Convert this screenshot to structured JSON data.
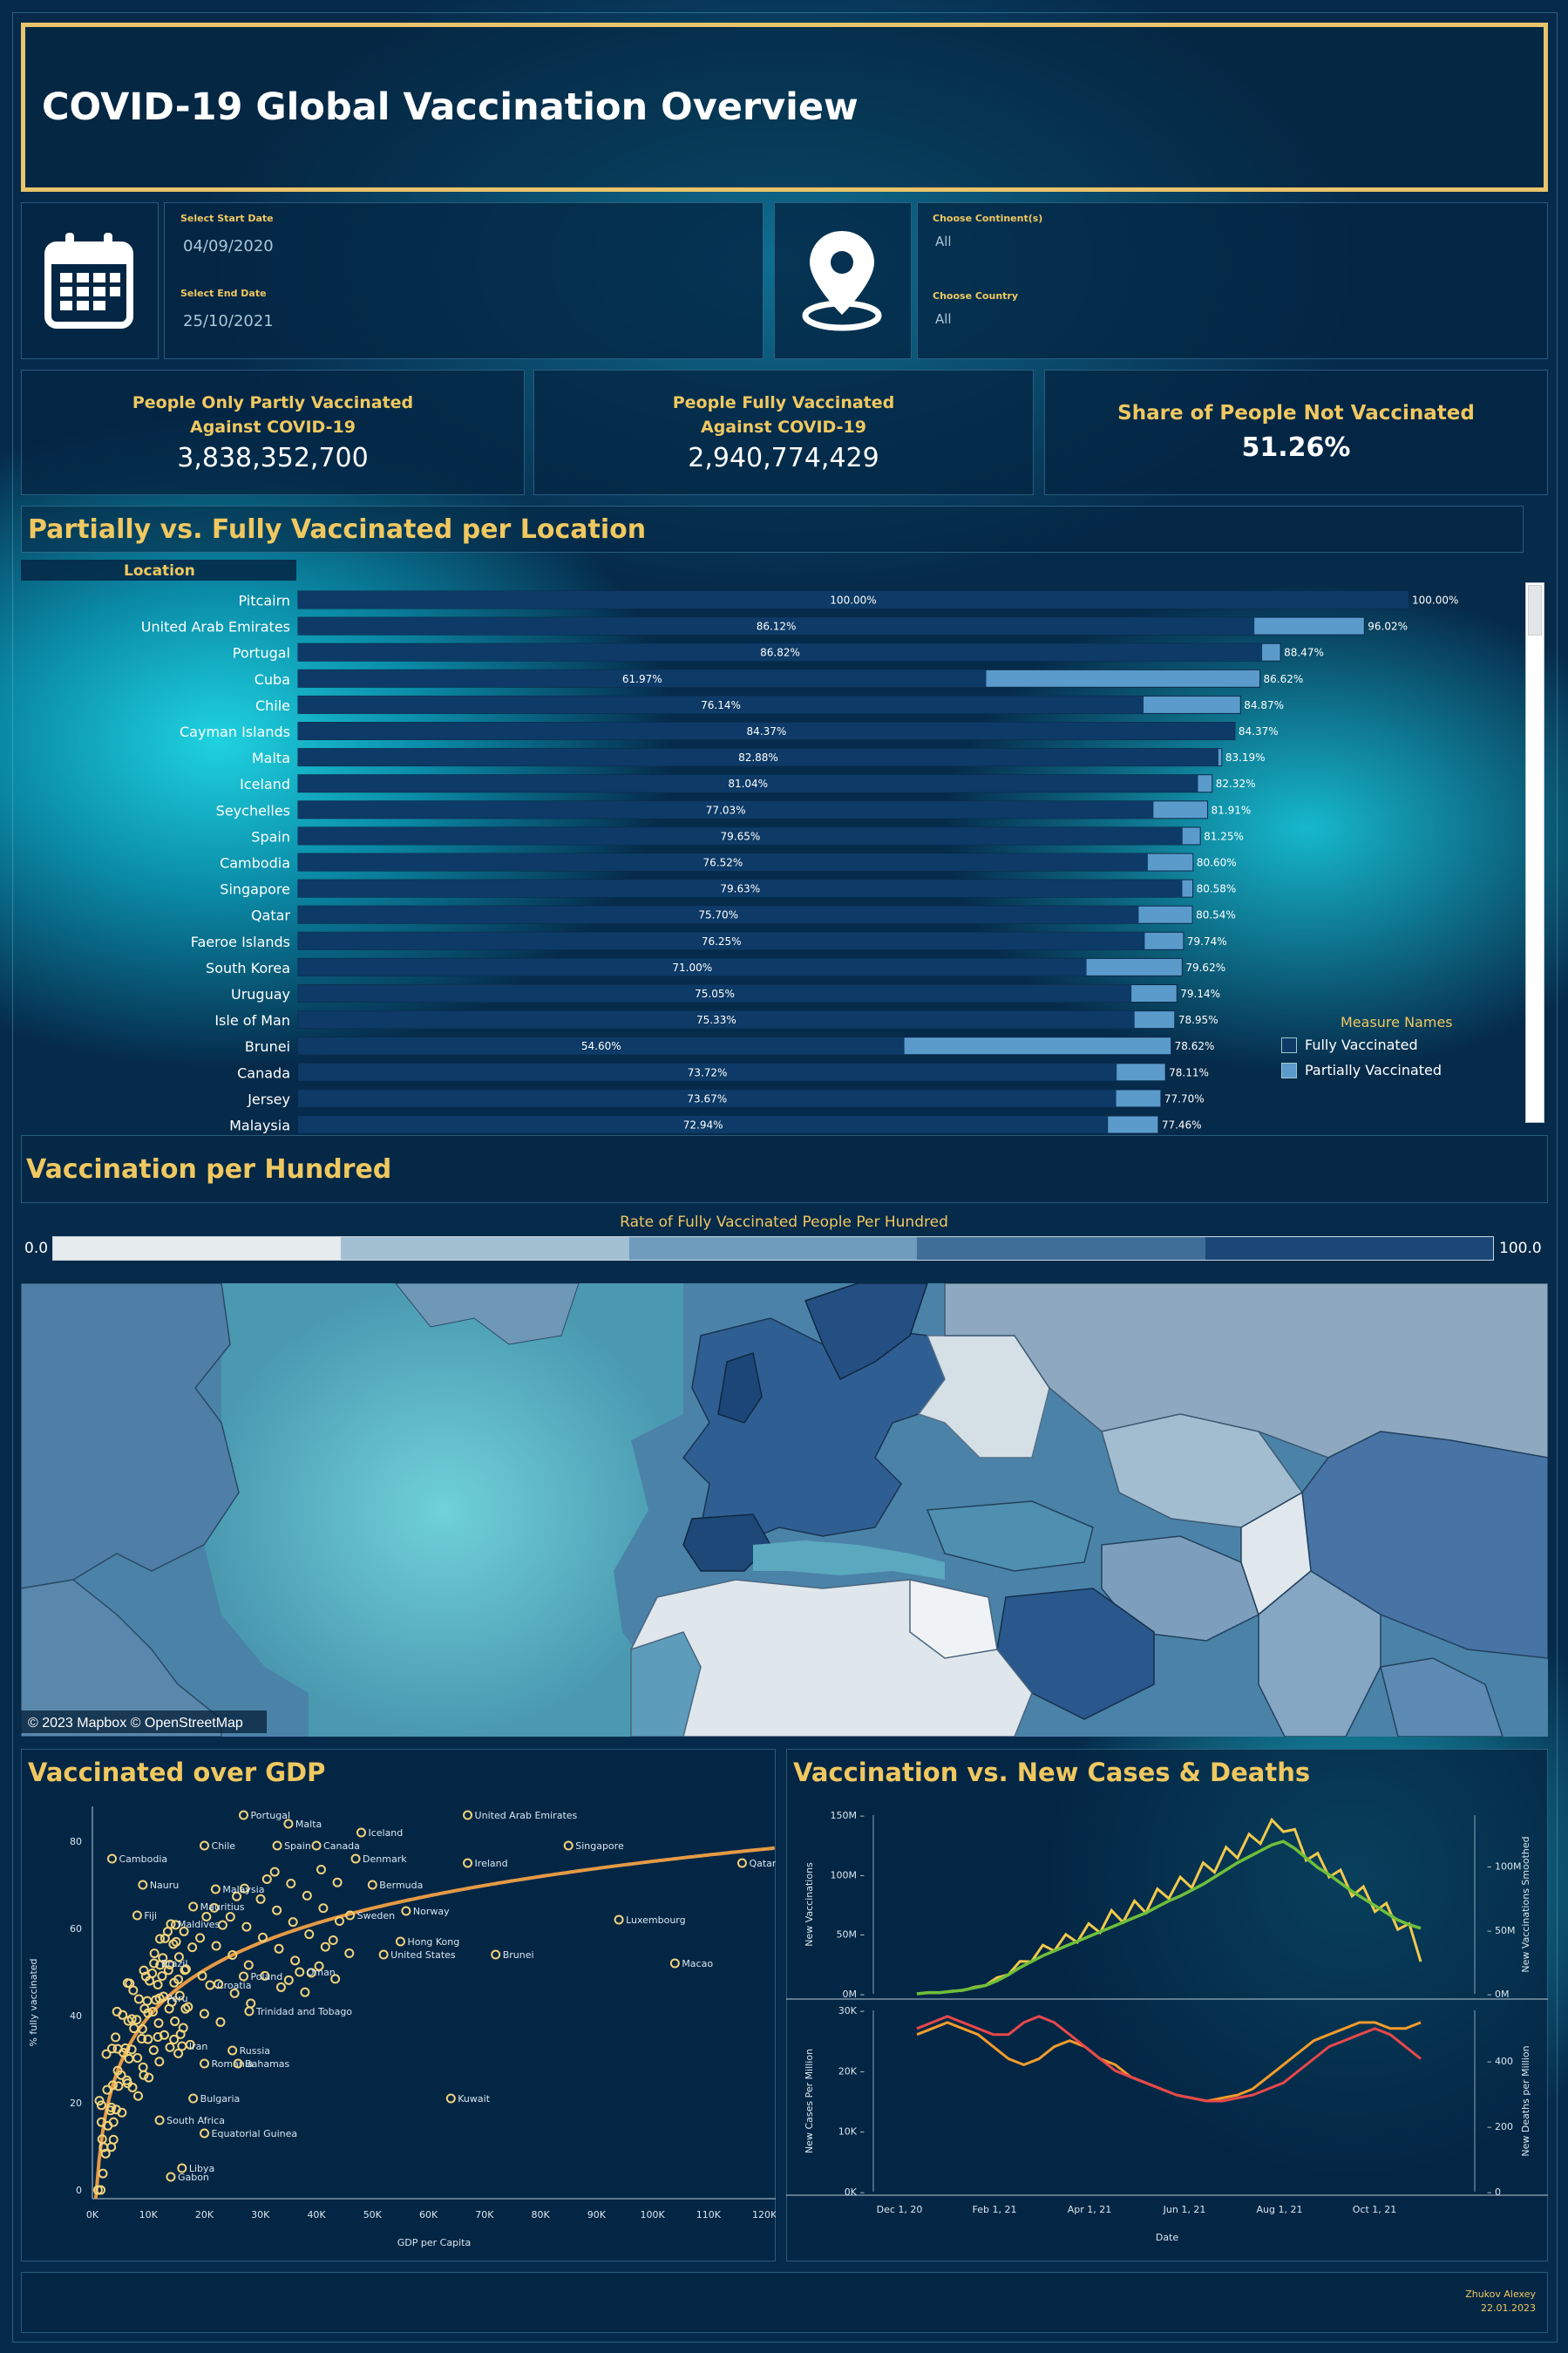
{
  "title": "COVID-19 Global Vaccination Overview",
  "filters": {
    "start_label": "Select Start Date",
    "start_value": "04/09/2020",
    "end_label": "Select End Date",
    "end_value": "25/10/2021",
    "continent_label": "Choose Continent(s)",
    "continent_value": "All",
    "country_label": "Choose Country",
    "country_value": "All"
  },
  "kpis": {
    "partly_label_1": "People Only Partly Vaccinated",
    "partly_label_2": "Against COVID-19",
    "partly_value": "3,838,352,700",
    "fully_label_1": "People Fully Vaccinated",
    "fully_label_2": "Against COVID-19",
    "fully_value": "2,940,774,429",
    "not_label": "Share of People Not Vaccinated",
    "not_value": "51.26%"
  },
  "bar_section": {
    "title": "Partially vs. Fully Vaccinated per Location",
    "location_header": "Location",
    "legend_title": "Measure Names",
    "legend_fully": "Fully Vaccinated",
    "legend_partial": "Partially Vaccinated",
    "colors": {
      "fully": "#0d3a66",
      "partial": "#5b9bcc"
    }
  },
  "map_section": {
    "title": "Vaccination per Hundred",
    "legend_title": "Rate of  Fully Vaccinated People Per Hundred",
    "legend_min": "0.0",
    "legend_max": "100.0",
    "attribution": "© 2023 Mapbox © OpenStreetMap",
    "legend_colors": [
      "#e6ebee",
      "#a3bfd2",
      "#6f9bbd",
      "#3f6f98",
      "#1b4778"
    ]
  },
  "gdp_section": {
    "title": "Vaccinated over GDP"
  },
  "trend_section": {
    "title": "Vaccination vs. New Cases & Deaths"
  },
  "footer": {
    "author": "Zhukov Alexey",
    "date": "22.01.2023"
  },
  "chart_data": [
    {
      "type": "bar",
      "categories": [
        "Pitcairn",
        "United Arab Emirates",
        "Portugal",
        "Cuba",
        "Chile",
        "Cayman Islands",
        "Malta",
        "Iceland",
        "Seychelles",
        "Spain",
        "Cambodia",
        "Singapore",
        "Qatar",
        "Faeroe Islands",
        "South Korea",
        "Uruguay",
        "Isle of Man",
        "Brunei",
        "Canada",
        "Jersey",
        "Malaysia"
      ],
      "series": [
        {
          "name": "Fully Vaccinated",
          "values": [
            100.0,
            86.12,
            86.82,
            61.97,
            76.14,
            84.37,
            82.88,
            81.04,
            77.03,
            79.65,
            76.52,
            79.63,
            75.7,
            76.25,
            71.0,
            75.05,
            75.33,
            54.6,
            73.72,
            73.67,
            72.94
          ]
        },
        {
          "name": "Partially Vaccinated",
          "values": [
            100.0,
            96.02,
            88.47,
            86.62,
            84.87,
            84.37,
            83.19,
            82.32,
            81.91,
            81.25,
            80.6,
            80.58,
            80.54,
            79.74,
            79.62,
            79.14,
            78.95,
            78.62,
            78.11,
            77.7,
            77.46
          ]
        }
      ],
      "fully_labels": [
        "100.00%",
        "86.12%",
        "86.82%",
        "61.97%",
        "76.14%",
        "84.37%",
        "82.88%",
        "81.04%",
        "77.03%",
        "79.65%",
        "76.52%",
        "79.63%",
        "75.70%",
        "76.25%",
        "71.00%",
        "75.05%",
        "75.33%",
        "54.60%",
        "73.72%",
        "73.67%",
        "72.94%"
      ],
      "partial_labels": [
        "100.00%",
        "96.02%",
        "88.47%",
        "86.62%",
        "84.87%",
        "84.37%",
        "83.19%",
        "82.32%",
        "81.91%",
        "81.25%",
        "80.60%",
        "80.58%",
        "80.54%",
        "79.74%",
        "79.62%",
        "79.14%",
        "78.95%",
        "78.62%",
        "78.11%",
        "77.70%",
        "77.46%"
      ],
      "xlim": [
        0,
        100
      ]
    },
    {
      "type": "scatter",
      "xlabel": "GDP per Capita",
      "ylabel": "% fully vaccinated",
      "x_ticks": [
        "0K",
        "10K",
        "20K",
        "30K",
        "40K",
        "50K",
        "60K",
        "70K",
        "80K",
        "90K",
        "100K",
        "110K",
        "120K"
      ],
      "y_ticks": [
        "0",
        "20",
        "40",
        "60",
        "80"
      ],
      "xlim": [
        0,
        122000
      ],
      "ylim": [
        -2,
        88
      ],
      "labeled_points": [
        {
          "label": "Portugal",
          "x": 27000,
          "y": 86
        },
        {
          "label": "Malta",
          "x": 35000,
          "y": 84
        },
        {
          "label": "Iceland",
          "x": 48000,
          "y": 82
        },
        {
          "label": "United Arab Emirates",
          "x": 67000,
          "y": 86
        },
        {
          "label": "Chile",
          "x": 20000,
          "y": 79
        },
        {
          "label": "Cambodia",
          "x": 3500,
          "y": 76
        },
        {
          "label": "Spain",
          "x": 33000,
          "y": 79
        },
        {
          "label": "Canada",
          "x": 40000,
          "y": 79
        },
        {
          "label": "Denmark",
          "x": 47000,
          "y": 76
        },
        {
          "label": "Singapore",
          "x": 85000,
          "y": 79
        },
        {
          "label": "Ireland",
          "x": 67000,
          "y": 75
        },
        {
          "label": "Qatar",
          "x": 116000,
          "y": 75
        },
        {
          "label": "Nauru",
          "x": 9000,
          "y": 70
        },
        {
          "label": "Malaysia",
          "x": 22000,
          "y": 69
        },
        {
          "label": "Bermuda",
          "x": 50000,
          "y": 70
        },
        {
          "label": "Mauritius",
          "x": 18000,
          "y": 65
        },
        {
          "label": "Maldives",
          "x": 14000,
          "y": 61
        },
        {
          "label": "Fiji",
          "x": 8000,
          "y": 63
        },
        {
          "label": "Sweden",
          "x": 46000,
          "y": 63
        },
        {
          "label": "Norway",
          "x": 56000,
          "y": 64
        },
        {
          "label": "Luxembourg",
          "x": 94000,
          "y": 62
        },
        {
          "label": "Hong Kong",
          "x": 55000,
          "y": 57
        },
        {
          "label": "United States",
          "x": 52000,
          "y": 54
        },
        {
          "label": "Brazil",
          "x": 11000,
          "y": 52
        },
        {
          "label": "Croatia",
          "x": 21000,
          "y": 47
        },
        {
          "label": "Poland",
          "x": 27000,
          "y": 49
        },
        {
          "label": "Oman",
          "x": 37000,
          "y": 50
        },
        {
          "label": "Brunei",
          "x": 72000,
          "y": 54
        },
        {
          "label": "Macao",
          "x": 104000,
          "y": 52
        },
        {
          "label": "Peru",
          "x": 12000,
          "y": 44
        },
        {
          "label": "Trinidad and Tobago",
          "x": 28000,
          "y": 41
        },
        {
          "label": "Iran",
          "x": 16000,
          "y": 33
        },
        {
          "label": "Russia",
          "x": 25000,
          "y": 32
        },
        {
          "label": "Romania",
          "x": 20000,
          "y": 29
        },
        {
          "label": "Bahamas",
          "x": 26000,
          "y": 29
        },
        {
          "label": "Bulgaria",
          "x": 18000,
          "y": 21
        },
        {
          "label": "Kuwait",
          "x": 64000,
          "y": 21
        },
        {
          "label": "South Africa",
          "x": 12000,
          "y": 16
        },
        {
          "label": "Equatorial Guinea",
          "x": 20000,
          "y": 13
        },
        {
          "label": "Libya",
          "x": 16000,
          "y": 5
        },
        {
          "label": "Gabon",
          "x": 14000,
          "y": 3
        }
      ]
    },
    {
      "type": "line",
      "xlabel": "Date",
      "x_ticks": [
        "Dec 1, 20",
        "Feb 1, 21",
        "Apr 1, 21",
        "Jun 1, 21",
        "Aug 1, 21",
        "Oct 1, 21"
      ],
      "top": {
        "ylabel_left": "New Vaccinations",
        "ylabel_right": "New Vaccinations Smoothed",
        "y_ticks_left": [
          "0M",
          "50M",
          "100M",
          "150M"
        ],
        "y_ticks_right": [
          "0M",
          "50M",
          "100M"
        ],
        "series": [
          {
            "name": "New Vaccinations",
            "color": "#f2c94c",
            "values": [
              0,
              1,
              1,
              2,
              3,
              5,
              8,
              12,
              18,
              24,
              30,
              36,
              40,
              44,
              48,
              52,
              57,
              62,
              66,
              70,
              74,
              80,
              86,
              90,
              95,
              102,
              108,
              115,
              120,
              126,
              132,
              138,
              142,
              130,
              118,
              110,
              104,
              96,
              88,
              82,
              75,
              68,
              60,
              52,
              30
            ]
          },
          {
            "name": "New Vaccinations Smoothed",
            "color": "#6fbf3a",
            "values": [
              0,
              1,
              1,
              2,
              3,
              5,
              7,
              11,
              16,
              22,
              27,
              32,
              36,
              40,
              44,
              48,
              52,
              56,
              60,
              64,
              68,
              73,
              78,
              82,
              87,
              92,
              98,
              104,
              110,
              115,
              120,
              125,
              128,
              122,
              114,
              106,
              100,
              93,
              86,
              80,
              74,
              68,
              62,
              58,
              55
            ]
          }
        ]
      },
      "bottom": {
        "ylabel_left": "New Cases Per Million",
        "ylabel_right": "New Deaths per Million",
        "y_ticks_left": [
          "0K",
          "10K",
          "20K",
          "30K"
        ],
        "y_ticks_right": [
          "0",
          "200",
          "400"
        ],
        "series": [
          {
            "name": "New Cases Per Million",
            "color": "#f39c2b",
            "values": [
              26,
              27,
              28,
              27,
              26,
              24,
              22,
              21,
              22,
              24,
              25,
              24,
              22,
              21,
              19,
              18,
              17,
              16,
              15.5,
              15,
              15.5,
              16,
              17,
              19,
              21,
              23,
              25,
              26,
              27,
              28,
              28,
              27,
              27,
              28
            ]
          },
          {
            "name": "New Deaths per Million",
            "color": "#e8484a",
            "values": [
              27,
              28,
              29,
              28,
              27,
              26,
              26,
              28,
              29,
              28,
              26,
              24,
              22,
              20,
              19,
              18,
              17,
              16,
              15.5,
              15,
              15,
              15.5,
              16,
              17,
              18,
              20,
              22,
              24,
              25,
              26,
              27,
              26,
              24,
              22
            ]
          }
        ]
      }
    }
  ]
}
